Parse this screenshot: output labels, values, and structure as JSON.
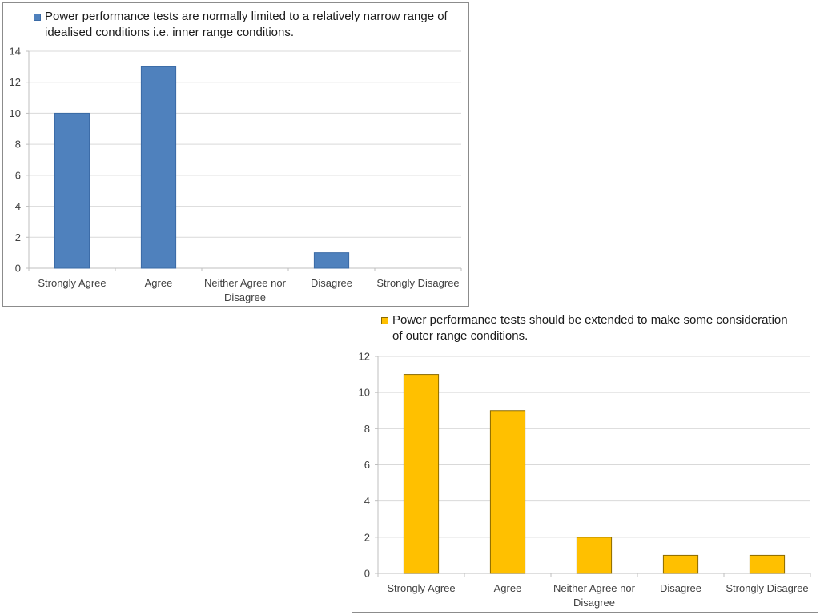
{
  "colors": {
    "gridline": "#d9d9d9",
    "axis": "#bfbfbf"
  },
  "chart_data": [
    {
      "type": "bar",
      "legend": "Power performance tests are normally limited to a relatively narrow range of idealised conditions i.e. inner range conditions.",
      "legend_position": "top",
      "categories": [
        "Strongly Agree",
        "Agree",
        "Neither Agree nor Disagree",
        "Disagree",
        "Strongly Disagree"
      ],
      "category_lines": [
        [
          "Strongly Agree"
        ],
        [
          "Agree"
        ],
        [
          "Neither Agree nor",
          "Disagree"
        ],
        [
          "Disagree"
        ],
        [
          "Strongly Disagree"
        ]
      ],
      "values": [
        10,
        13,
        0,
        1,
        0
      ],
      "ylim": [
        0,
        14
      ],
      "yticks": [
        0,
        2,
        4,
        6,
        8,
        10,
        12,
        14
      ],
      "grid": true,
      "color": "#4f81bd",
      "edge_color": "#3a6aa5"
    },
    {
      "type": "bar",
      "legend": "Power performance tests should be extended to make some consideration of outer range conditions.",
      "legend_position": "top",
      "categories": [
        "Strongly Agree",
        "Agree",
        "Neither Agree nor Disagree",
        "Disagree",
        "Strongly Disagree"
      ],
      "category_lines": [
        [
          "Strongly Agree"
        ],
        [
          "Agree"
        ],
        [
          "Neither Agree nor",
          "Disagree"
        ],
        [
          "Disagree"
        ],
        [
          "Strongly Disagree"
        ]
      ],
      "values": [
        11,
        9,
        2,
        1,
        1
      ],
      "ylim": [
        0,
        12
      ],
      "yticks": [
        0,
        2,
        4,
        6,
        8,
        10,
        12
      ],
      "grid": true,
      "color": "#ffc000",
      "edge_color": "#8a6a00"
    }
  ]
}
